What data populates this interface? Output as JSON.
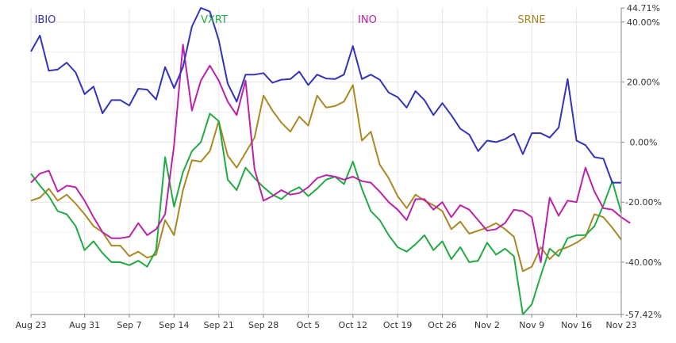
{
  "chart_data": {
    "type": "line",
    "title": "",
    "xlabel": "",
    "ylabel": "",
    "x_tick_labels": [
      "Aug 23",
      "Aug 31",
      "Sep 7",
      "Sep 14",
      "Sep 21",
      "Sep 28",
      "Oct 5",
      "Oct 12",
      "Oct 19",
      "Oct 26",
      "Nov 2",
      "Nov 9",
      "Nov 16",
      "Nov 23"
    ],
    "y_tick_labels": [
      "44.71%",
      "40.00%",
      "20.00%",
      "0.00%",
      "-20.00%",
      "-40.00%",
      "-57.42%"
    ],
    "y_tick_values": [
      44.71,
      40,
      20,
      0,
      -20,
      -40,
      -57.42
    ],
    "ylim": [
      -57.42,
      44.71
    ],
    "y_unit": "%",
    "grid": true,
    "legend": "top, inline labels",
    "series": [
      {
        "name": "IBIO",
        "color": "#3333bb",
        "values": [
          30.2,
          35.5,
          23.8,
          24.2,
          26.5,
          23.2,
          16.0,
          18.5,
          9.6,
          14.0,
          14.0,
          12.2,
          17.8,
          17.5,
          14.2,
          25.0,
          18.0,
          25.0,
          38.5,
          44.71,
          43.5,
          34.0,
          19.5,
          13.5,
          22.5,
          22.5,
          23.0,
          19.8,
          20.8,
          21.0,
          23.5,
          19.0,
          22.5,
          21.2,
          21.0,
          22.5,
          32.0,
          21.0,
          22.5,
          20.8,
          16.5,
          15.0,
          11.5,
          17.0,
          14.0,
          9.0,
          13.0,
          9.0,
          4.5,
          2.5,
          -3.0,
          0.5,
          0.0,
          1.0,
          2.8,
          -4.0,
          3.0,
          3.0,
          1.5,
          4.8,
          21.0,
          0.5,
          -1.0,
          -5.0,
          -5.5,
          -13.5,
          -13.5
        ]
      },
      {
        "name": "VXRT",
        "color": "#22aa44",
        "values": [
          -10.5,
          -14.5,
          -18.0,
          -23.0,
          -24.0,
          -28.0,
          -36.0,
          -33.0,
          -37.0,
          -40.0,
          -40.0,
          -41.0,
          -39.5,
          -41.5,
          -36.0,
          -5.0,
          -21.5,
          -10.0,
          -3.0,
          0.0,
          9.5,
          7.0,
          -12.5,
          -16.0,
          -8.5,
          -12.0,
          -15.0,
          -17.5,
          -19.0,
          -16.5,
          -15.0,
          -18.0,
          -15.5,
          -12.5,
          -11.5,
          -14.0,
          -6.5,
          -15.5,
          -23.0,
          -26.0,
          -31.0,
          -35.0,
          -36.5,
          -34.0,
          -31.0,
          -36.0,
          -33.0,
          -39.0,
          -35.0,
          -40.0,
          -39.5,
          -33.5,
          -37.5,
          -35.5,
          -38.0,
          -57.42,
          -54.0,
          -44.5,
          -35.5,
          -38.0,
          -32.0,
          -31.0,
          -31.0,
          -28.0,
          -21.0,
          -13.0,
          -23.5
        ]
      },
      {
        "name": "INO",
        "color": "#bb22aa",
        "values": [
          -13.5,
          -10.5,
          -9.5,
          -16.5,
          -14.5,
          -15.0,
          -19.5,
          -25.0,
          -30.0,
          -32.0,
          -32.0,
          -31.5,
          -27.0,
          -31.0,
          -29.0,
          -24.0,
          -1.0,
          32.5,
          10.5,
          20.5,
          25.5,
          20.5,
          13.5,
          9.0,
          20.5,
          -9.0,
          -19.5,
          -18.0,
          -16.0,
          -17.5,
          -17.0,
          -15.0,
          -12.0,
          -11.0,
          -11.5,
          -12.5,
          -11.5,
          -13.0,
          -13.5,
          -16.5,
          -20.0,
          -22.5,
          -26.0,
          -19.0,
          -19.0,
          -22.5,
          -20.0,
          -25.0,
          -21.0,
          -22.5,
          -26.0,
          -29.5,
          -29.0,
          -27.0,
          -22.5,
          -23.0,
          -25.0,
          -40.0,
          -18.5,
          -24.5,
          -19.5,
          -20.0,
          -8.5,
          -16.5,
          -22.0,
          -22.5,
          -25.0,
          -27.0
        ]
      },
      {
        "name": "SRNE",
        "color": "#aa8822",
        "values": [
          -19.5,
          -18.5,
          -15.5,
          -19.5,
          -17.5,
          -20.5,
          -24.0,
          -28.0,
          -30.0,
          -34.5,
          -34.5,
          -38.0,
          -36.5,
          -38.5,
          -37.5,
          -26.0,
          -31.0,
          -16.0,
          -6.0,
          -6.5,
          -3.0,
          7.0,
          -4.5,
          -8.5,
          -3.5,
          1.5,
          15.5,
          10.5,
          6.5,
          3.5,
          8.5,
          5.5,
          15.5,
          11.5,
          12.0,
          13.5,
          19.0,
          0.5,
          3.5,
          -7.5,
          -12.0,
          -18.0,
          -22.0,
          -17.5,
          -19.5,
          -21.0,
          -23.0,
          -29.0,
          -26.5,
          -30.5,
          -29.5,
          -28.5,
          -27.0,
          -29.0,
          -31.5,
          -43.0,
          -41.5,
          -35.0,
          -39.0,
          -36.0,
          -35.0,
          -33.5,
          -31.5,
          -24.0,
          -25.0,
          -28.5,
          -32.5
        ]
      }
    ]
  }
}
